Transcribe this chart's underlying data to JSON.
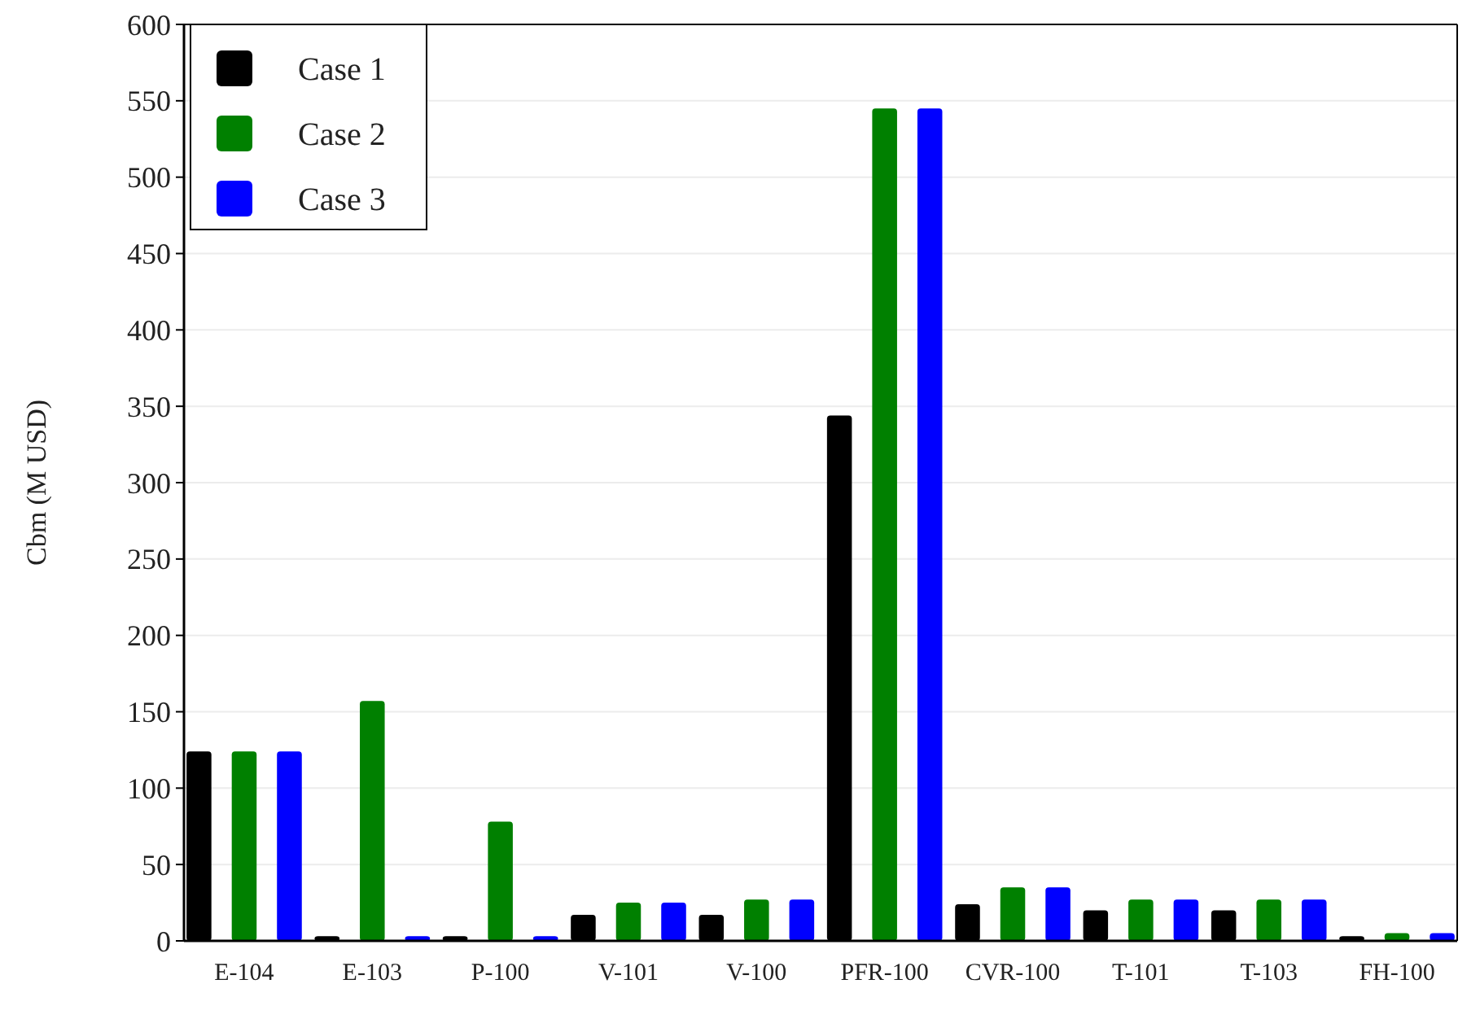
{
  "chart_data": {
    "type": "bar",
    "ylabel": "Cbm (M USD)",
    "categories": [
      "E-104",
      "E-103",
      "P-100",
      "V-101",
      "V-100",
      "PFR-100",
      "CVR-100",
      "T-101",
      "T-103",
      "FH-100"
    ],
    "series": [
      {
        "name": "Case 1",
        "color": "#000000",
        "values": [
          124,
          3,
          3,
          17,
          17,
          344,
          24,
          20,
          20,
          3
        ]
      },
      {
        "name": "Case 2",
        "color": "#008000",
        "values": [
          124,
          157,
          78,
          25,
          27,
          545,
          35,
          27,
          27,
          5
        ]
      },
      {
        "name": "Case 3",
        "color": "#0000ff",
        "values": [
          124,
          3,
          3,
          25,
          27,
          545,
          35,
          27,
          27,
          5
        ]
      }
    ],
    "ylim": [
      0,
      600
    ],
    "yticks": [
      0,
      50,
      100,
      150,
      200,
      250,
      300,
      350,
      400,
      450,
      500,
      550,
      600
    ],
    "grid": "y",
    "legend": "top left"
  }
}
